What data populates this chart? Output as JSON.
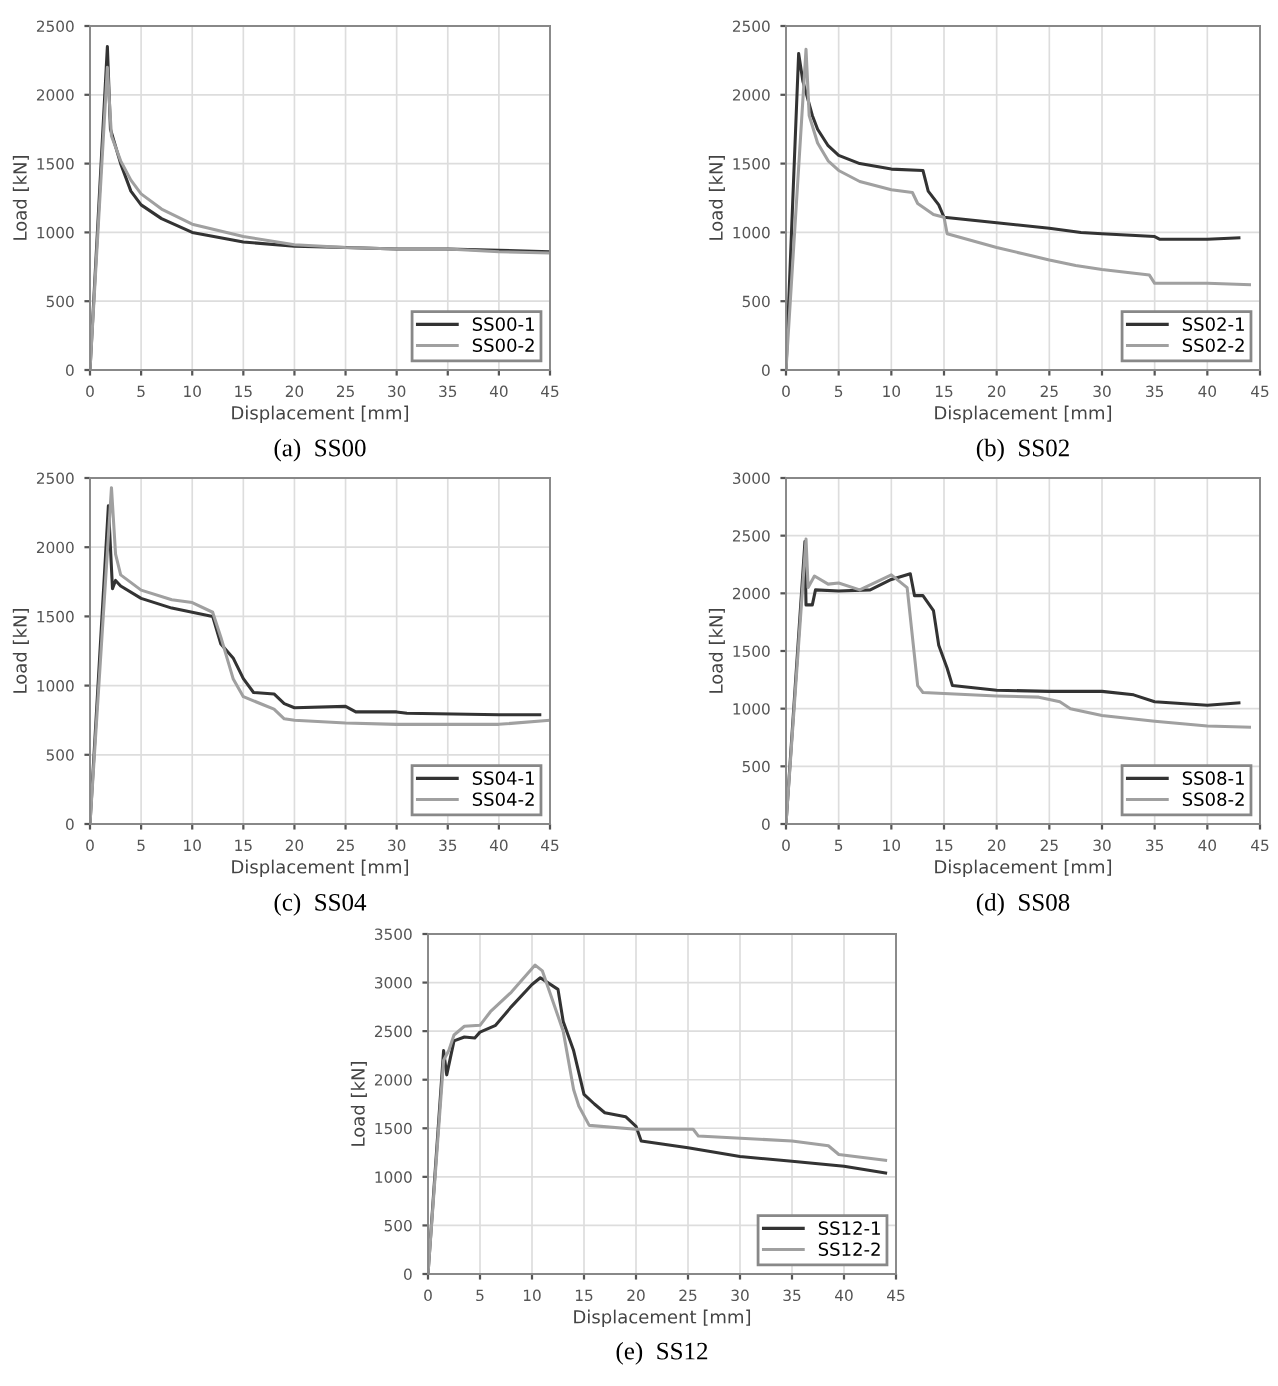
{
  "chart_data": [
    {
      "type": "line",
      "title": "(a)  SS00",
      "xlabel": "Displacement [mm]",
      "ylabel": "Load [kN]",
      "xlim": [
        0,
        45
      ],
      "ylim": [
        0,
        2500
      ],
      "xticks": [
        0,
        5,
        10,
        15,
        20,
        25,
        30,
        35,
        40,
        45
      ],
      "yticks": [
        0,
        500,
        1000,
        1500,
        2000,
        2500
      ],
      "grid": true,
      "legend": "bottom right",
      "series": [
        {
          "name": "SS00-1",
          "color": "#333333",
          "x": [
            0,
            1.7,
            2.0,
            3,
            4,
            5,
            7,
            10,
            15,
            20,
            25,
            30,
            35,
            40,
            45
          ],
          "values": [
            0,
            2350,
            1750,
            1500,
            1300,
            1200,
            1100,
            1000,
            930,
            900,
            890,
            880,
            880,
            870,
            860
          ]
        },
        {
          "name": "SS00-2",
          "color": "#a0a0a0",
          "x": [
            0,
            1.7,
            2.1,
            3,
            4,
            5,
            7,
            10,
            15,
            20,
            25,
            30,
            35,
            40,
            45
          ],
          "values": [
            0,
            2200,
            1700,
            1520,
            1380,
            1280,
            1170,
            1060,
            970,
            910,
            890,
            880,
            880,
            860,
            850
          ]
        }
      ]
    },
    {
      "type": "line",
      "title": "(b)  SS02",
      "xlabel": "Displacement [mm]",
      "ylabel": "Load [kN]",
      "xlim": [
        0,
        45
      ],
      "ylim": [
        0,
        2500
      ],
      "xticks": [
        0,
        5,
        10,
        15,
        20,
        25,
        30,
        35,
        40,
        45
      ],
      "yticks": [
        0,
        500,
        1000,
        1500,
        2000,
        2500
      ],
      "grid": true,
      "legend": "bottom right",
      "series": [
        {
          "name": "SS02-1",
          "color": "#333333",
          "x": [
            0,
            1.2,
            1.6,
            2.5,
            3,
            4,
            5,
            7,
            10,
            13,
            13.5,
            14.5,
            15,
            20,
            25,
            28,
            30,
            35,
            35.5,
            40,
            43
          ],
          "values": [
            0,
            2300,
            2100,
            1850,
            1750,
            1630,
            1560,
            1500,
            1460,
            1450,
            1300,
            1200,
            1110,
            1070,
            1030,
            1000,
            990,
            970,
            950,
            950,
            960
          ]
        },
        {
          "name": "SS02-2",
          "color": "#a0a0a0",
          "x": [
            0,
            1.9,
            2.2,
            3,
            4,
            5,
            7,
            10,
            12,
            12.5,
            14,
            15,
            15.3,
            20,
            25,
            27.5,
            30,
            34.5,
            35,
            40,
            44
          ],
          "values": [
            0,
            2330,
            1850,
            1650,
            1520,
            1450,
            1370,
            1310,
            1290,
            1210,
            1130,
            1110,
            990,
            890,
            800,
            760,
            730,
            690,
            630,
            630,
            620
          ]
        }
      ]
    },
    {
      "type": "line",
      "title": "(c)  SS04",
      "xlabel": "Displacement [mm]",
      "ylabel": "Load [kN]",
      "xlim": [
        0,
        45
      ],
      "ylim": [
        0,
        2500
      ],
      "xticks": [
        0,
        5,
        10,
        15,
        20,
        25,
        30,
        35,
        40,
        45
      ],
      "yticks": [
        0,
        500,
        1000,
        1500,
        2000,
        2500
      ],
      "grid": true,
      "legend": "bottom right",
      "series": [
        {
          "name": "SS04-1",
          "color": "#333333",
          "x": [
            0,
            1.8,
            2.2,
            2.5,
            3,
            5,
            8,
            10,
            12,
            12.8,
            14,
            15,
            16,
            18,
            19,
            20,
            25,
            26,
            30,
            31,
            40,
            44
          ],
          "values": [
            0,
            2300,
            1700,
            1760,
            1720,
            1630,
            1560,
            1530,
            1500,
            1300,
            1200,
            1050,
            950,
            940,
            870,
            840,
            850,
            810,
            810,
            800,
            790,
            790
          ]
        },
        {
          "name": "SS04-2",
          "color": "#a0a0a0",
          "x": [
            0,
            2.1,
            2.5,
            3,
            5,
            8,
            10,
            12,
            12.8,
            14,
            15,
            17,
            18,
            19,
            20,
            25,
            30,
            40,
            45
          ],
          "values": [
            0,
            2430,
            1950,
            1800,
            1690,
            1620,
            1600,
            1530,
            1350,
            1050,
            920,
            860,
            830,
            760,
            750,
            730,
            720,
            720,
            750
          ]
        }
      ]
    },
    {
      "type": "line",
      "title": "(d)  SS08",
      "xlabel": "Displacement [mm]",
      "ylabel": "Load [kN]",
      "xlim": [
        0,
        45
      ],
      "ylim": [
        0,
        3000
      ],
      "xticks": [
        0,
        5,
        10,
        15,
        20,
        25,
        30,
        35,
        40,
        45
      ],
      "yticks": [
        0,
        500,
        1000,
        1500,
        2000,
        2500,
        3000
      ],
      "grid": true,
      "legend": "bottom right",
      "series": [
        {
          "name": "SS08-1",
          "color": "#333333",
          "x": [
            0,
            1.8,
            1.9,
            2.5,
            2.8,
            5,
            8,
            10,
            11.8,
            12.2,
            13,
            14,
            14.5,
            15.3,
            15.8,
            20,
            25,
            30,
            33,
            35,
            40,
            43
          ],
          "values": [
            0,
            2450,
            1900,
            1900,
            2030,
            2020,
            2030,
            2120,
            2170,
            1980,
            1980,
            1850,
            1550,
            1350,
            1200,
            1160,
            1150,
            1150,
            1120,
            1060,
            1030,
            1050
          ]
        },
        {
          "name": "SS08-2",
          "color": "#a0a0a0",
          "x": [
            0,
            1.9,
            2.1,
            2.7,
            4,
            5,
            7,
            10,
            11.5,
            12.5,
            13,
            20,
            24,
            26,
            27,
            30,
            35,
            40,
            44
          ],
          "values": [
            0,
            2470,
            2050,
            2150,
            2080,
            2090,
            2030,
            2160,
            2050,
            1200,
            1140,
            1110,
            1100,
            1060,
            1000,
            940,
            890,
            850,
            840
          ]
        }
      ]
    },
    {
      "type": "line",
      "title": "(e)  SS12",
      "xlabel": "Displacement [mm]",
      "ylabel": "Load [kN]",
      "xlim": [
        0,
        45
      ],
      "ylim": [
        0,
        3500
      ],
      "xticks": [
        0,
        5,
        10,
        15,
        20,
        25,
        30,
        35,
        40,
        45
      ],
      "yticks": [
        0,
        500,
        1000,
        1500,
        2000,
        2500,
        3000,
        3500
      ],
      "grid": true,
      "legend": "bottom right",
      "series": [
        {
          "name": "SS12-1",
          "color": "#333333",
          "x": [
            0,
            1.5,
            1.8,
            2.5,
            3.5,
            4.5,
            5,
            6.5,
            8,
            10,
            10.8,
            12.5,
            13,
            14,
            15,
            16,
            17,
            19,
            20,
            20.5,
            25,
            30,
            35,
            40,
            44
          ],
          "values": [
            0,
            2300,
            2050,
            2400,
            2440,
            2430,
            2490,
            2560,
            2750,
            2980,
            3050,
            2930,
            2600,
            2300,
            1850,
            1750,
            1660,
            1620,
            1520,
            1370,
            1300,
            1210,
            1160,
            1110,
            1040
          ]
        },
        {
          "name": "SS12-2",
          "color": "#a0a0a0",
          "x": [
            0,
            1.5,
            2,
            2.5,
            3.5,
            5,
            6,
            8,
            10.3,
            11,
            13,
            14,
            14.5,
            15.5,
            20,
            25.5,
            26,
            35,
            38.5,
            39.5,
            44
          ],
          "values": [
            0,
            2200,
            2300,
            2460,
            2550,
            2560,
            2700,
            2900,
            3180,
            3120,
            2500,
            1900,
            1730,
            1530,
            1490,
            1490,
            1420,
            1370,
            1320,
            1230,
            1170
          ]
        }
      ]
    }
  ]
}
